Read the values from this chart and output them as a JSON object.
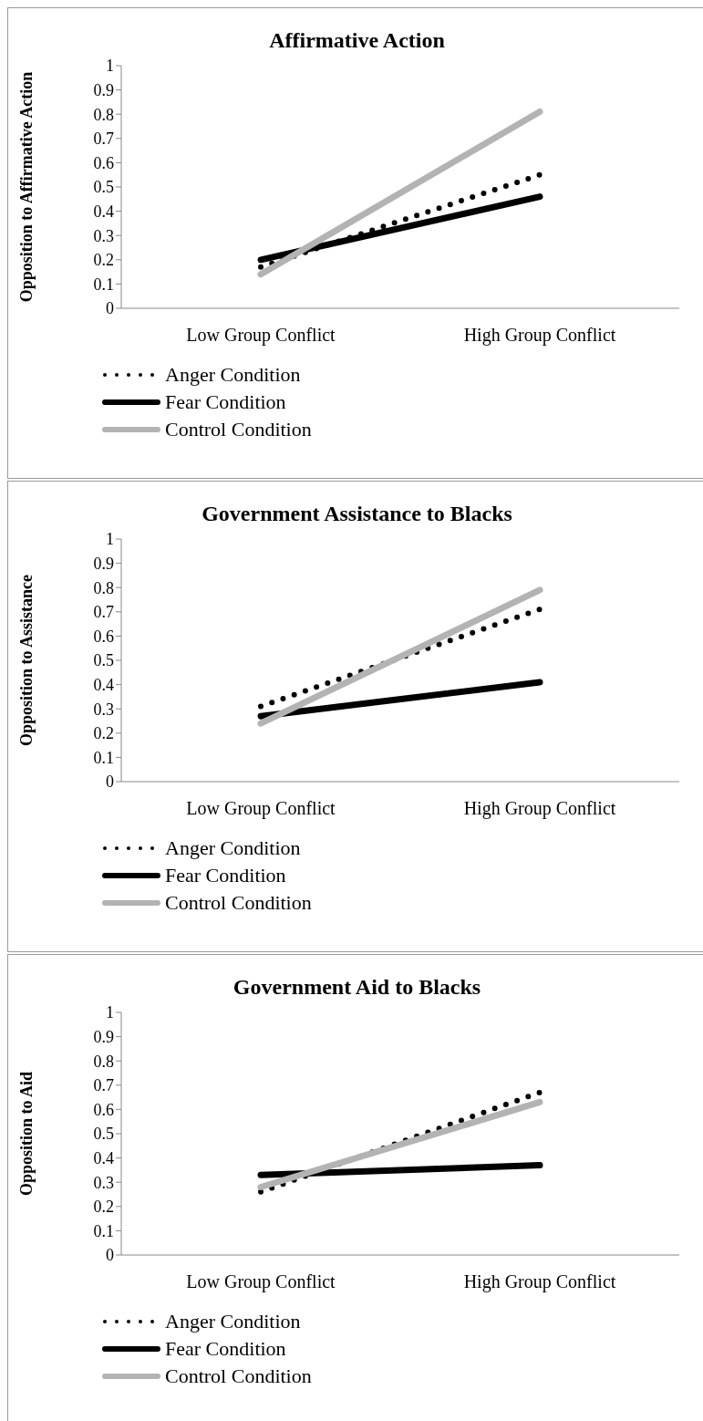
{
  "chart_data": [
    {
      "type": "line",
      "title": "Affirmative Action",
      "ylabel": "Opposition to Affirmative Action",
      "categories": [
        "Low Group Conflict",
        "High Group Conflict"
      ],
      "ylim": [
        0,
        1
      ],
      "yticks": [
        0,
        0.1,
        0.2,
        0.3,
        0.4,
        0.5,
        0.6,
        0.7,
        0.8,
        0.9,
        1
      ],
      "legend": "bottom",
      "grid": false,
      "series": [
        {
          "name": "Anger Condition",
          "color": "#000000",
          "line_style": "dotted",
          "values": [
            0.17,
            0.55
          ]
        },
        {
          "name": "Fear Condition",
          "color": "#000000",
          "line_style": "solid",
          "values": [
            0.2,
            0.46
          ]
        },
        {
          "name": "Control Condition",
          "color": "#b3b3b3",
          "line_style": "solid",
          "values": [
            0.14,
            0.81
          ]
        }
      ]
    },
    {
      "type": "line",
      "title": "Government Assistance to Blacks",
      "ylabel": "Opposition to Assistance",
      "categories": [
        "Low Group Conflict",
        "High Group Conflict"
      ],
      "ylim": [
        0,
        1
      ],
      "yticks": [
        0,
        0.1,
        0.2,
        0.3,
        0.4,
        0.5,
        0.6,
        0.7,
        0.8,
        0.9,
        1
      ],
      "legend": "bottom",
      "grid": false,
      "series": [
        {
          "name": "Anger Condition",
          "color": "#000000",
          "line_style": "dotted",
          "values": [
            0.31,
            0.71
          ]
        },
        {
          "name": "Fear Condition",
          "color": "#000000",
          "line_style": "solid",
          "values": [
            0.27,
            0.41
          ]
        },
        {
          "name": "Control Condition",
          "color": "#b3b3b3",
          "line_style": "solid",
          "values": [
            0.24,
            0.79
          ]
        }
      ]
    },
    {
      "type": "line",
      "title": "Government Aid to Blacks",
      "ylabel": "Opposition to Aid",
      "categories": [
        "Low Group Conflict",
        "High Group Conflict"
      ],
      "ylim": [
        0,
        1
      ],
      "yticks": [
        0,
        0.1,
        0.2,
        0.3,
        0.4,
        0.5,
        0.6,
        0.7,
        0.8,
        0.9,
        1
      ],
      "legend": "bottom",
      "grid": false,
      "series": [
        {
          "name": "Anger Condition",
          "color": "#000000",
          "line_style": "dotted",
          "values": [
            0.26,
            0.67
          ]
        },
        {
          "name": "Fear Condition",
          "color": "#000000",
          "line_style": "solid",
          "values": [
            0.33,
            0.37
          ]
        },
        {
          "name": "Control Condition",
          "color": "#b3b3b3",
          "line_style": "solid",
          "values": [
            0.28,
            0.63
          ]
        }
      ]
    }
  ]
}
